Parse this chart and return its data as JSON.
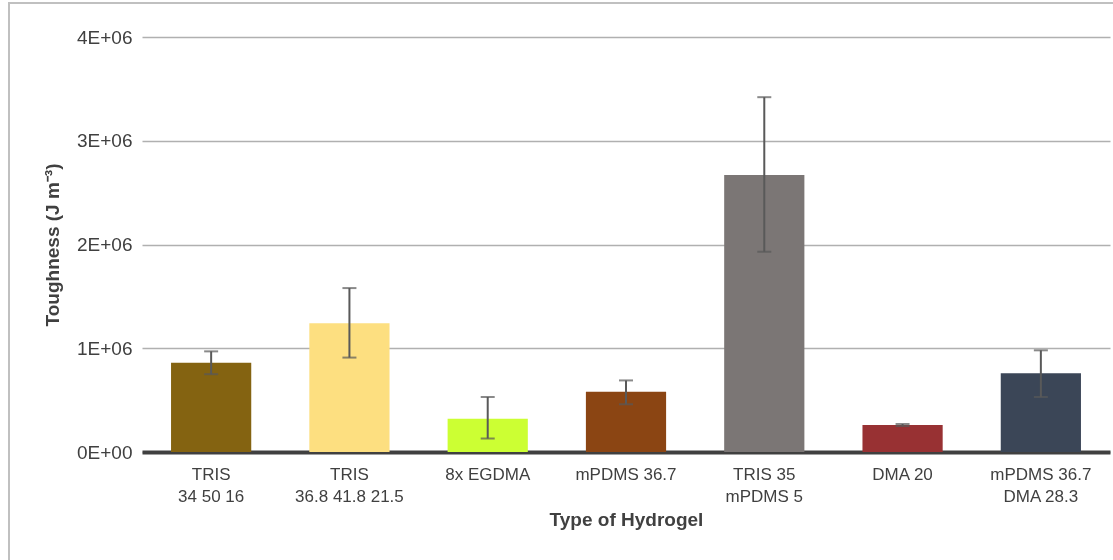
{
  "chart_data": {
    "type": "bar",
    "xlabel": "Type of Hydrogel",
    "ylabel": "Toughness (J m⁻³)",
    "categories": [
      "TRIS\n34 50 16",
      "TRIS\n36.8 41.8 21.5",
      "8x EGDMA",
      "mPDMS 36.7",
      "TRIS  35\nmPDMS 5",
      "DMA 20",
      "mPDMS 36.7\nDMA 28.3"
    ],
    "values": [
      860000,
      1240000,
      320000,
      580000,
      2670000,
      260000,
      760000
    ],
    "colors": [
      "#846311",
      "#fddf80",
      "#ccff33",
      "#8b4513",
      "#7b7675",
      "#983133",
      "#3b4657"
    ],
    "errors": [
      [
        750000,
        970000
      ],
      [
        910000,
        1580000
      ],
      [
        130000,
        530000
      ],
      [
        460000,
        690000
      ],
      [
        1930000,
        3420000
      ],
      [
        250000,
        270000
      ],
      [
        530000,
        980000
      ]
    ],
    "ylim": [
      0,
      4000000
    ],
    "yticks": [
      {
        "value": 0,
        "label": "0E+00"
      },
      {
        "value": 1000000,
        "label": "1E+06"
      },
      {
        "value": 2000000,
        "label": "2E+06"
      },
      {
        "value": 3000000,
        "label": "3E+06"
      },
      {
        "value": 4000000,
        "label": "4E+06"
      }
    ],
    "grid": "y",
    "legend": false
  }
}
